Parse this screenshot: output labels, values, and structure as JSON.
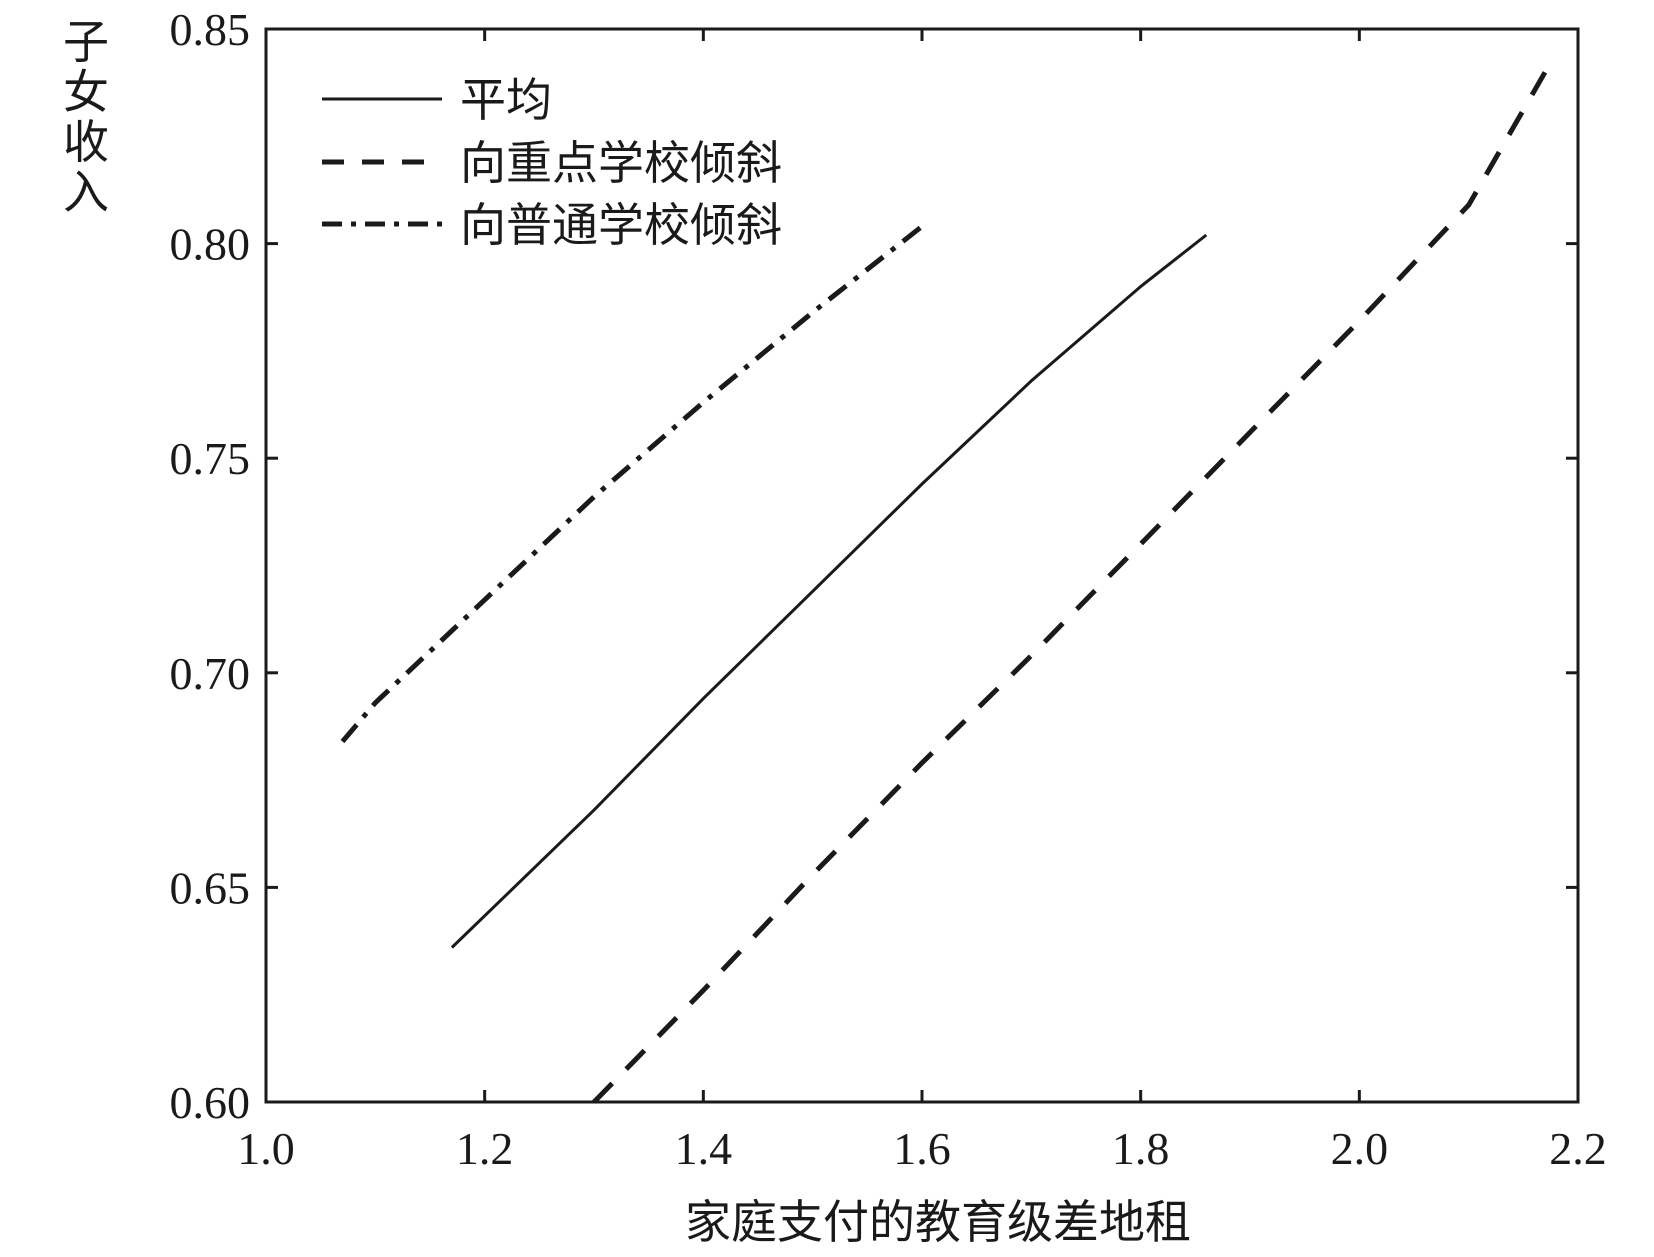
{
  "chart_data": {
    "type": "line",
    "title": "",
    "xlabel": "家庭支付的教育级差地租",
    "ylabel_chars": [
      "子",
      "女",
      "收",
      "入"
    ],
    "xlim": [
      1.0,
      2.2
    ],
    "ylim": [
      0.6,
      0.85
    ],
    "x_ticks": [
      1.0,
      1.2,
      1.4,
      1.6,
      1.8,
      2.0,
      2.2
    ],
    "x_tick_labels": [
      "1.0",
      "1.2",
      "1.4",
      "1.6",
      "1.8",
      "2.0",
      "2.2"
    ],
    "y_ticks": [
      0.6,
      0.65,
      0.7,
      0.75,
      0.8,
      0.85
    ],
    "y_tick_labels": [
      "0.60",
      "0.65",
      "0.70",
      "0.75",
      "0.80",
      "0.85"
    ],
    "grid": false,
    "legend_position": "top-left",
    "series": [
      {
        "name": "平均",
        "style": "solid",
        "color": "#1a1a1a",
        "x": [
          1.17,
          1.3,
          1.4,
          1.5,
          1.6,
          1.7,
          1.8,
          1.86
        ],
        "y": [
          0.636,
          0.668,
          0.694,
          0.719,
          0.744,
          0.768,
          0.79,
          0.802
        ]
      },
      {
        "name": "向重点学校倾斜",
        "style": "dashed",
        "color": "#1a1a1a",
        "x": [
          1.3,
          1.4,
          1.5,
          1.6,
          1.7,
          1.8,
          1.9,
          2.0,
          2.1,
          2.17
        ],
        "y": [
          0.6,
          0.626,
          0.653,
          0.679,
          0.704,
          0.73,
          0.756,
          0.782,
          0.809,
          0.84
        ]
      },
      {
        "name": "向普通学校倾斜",
        "style": "dashdot",
        "color": "#1a1a1a",
        "x": [
          1.07,
          1.1,
          1.2,
          1.3,
          1.4,
          1.5,
          1.6
        ],
        "y": [
          0.684,
          0.693,
          0.717,
          0.741,
          0.763,
          0.784,
          0.804
        ]
      }
    ]
  }
}
